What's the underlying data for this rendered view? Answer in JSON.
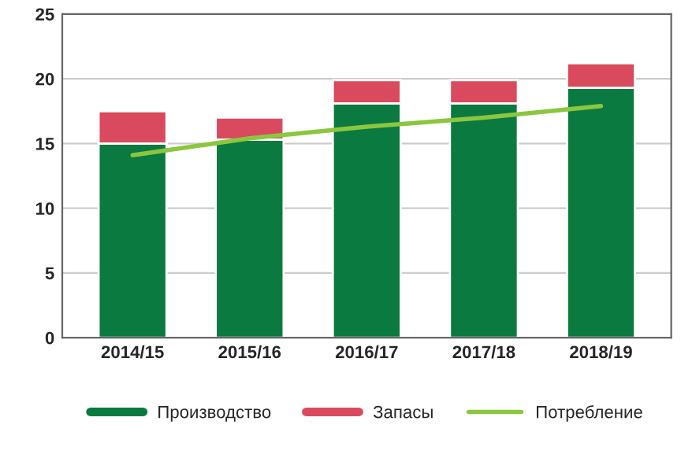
{
  "chart_data": {
    "type": "bar",
    "stacked": true,
    "categories": [
      "2014/15",
      "2015/16",
      "2016/17",
      "2017/18",
      "2018/19"
    ],
    "series": [
      {
        "name": "Производство",
        "color": "#0a7a40",
        "values": [
          15.0,
          15.3,
          18.1,
          18.1,
          19.3
        ]
      },
      {
        "name": "Запасы",
        "color": "#d94a5e",
        "values": [
          2.5,
          1.7,
          1.8,
          1.8,
          1.9
        ]
      },
      {
        "name": "Потребление",
        "color": "#8cc63f",
        "type": "line",
        "values": [
          14.1,
          15.4,
          16.3,
          17.0,
          17.9
        ]
      }
    ],
    "ylim": [
      0,
      25
    ],
    "yticks": [
      0,
      5,
      10,
      15,
      20,
      25
    ],
    "grid": "y",
    "legend": "bottom"
  }
}
